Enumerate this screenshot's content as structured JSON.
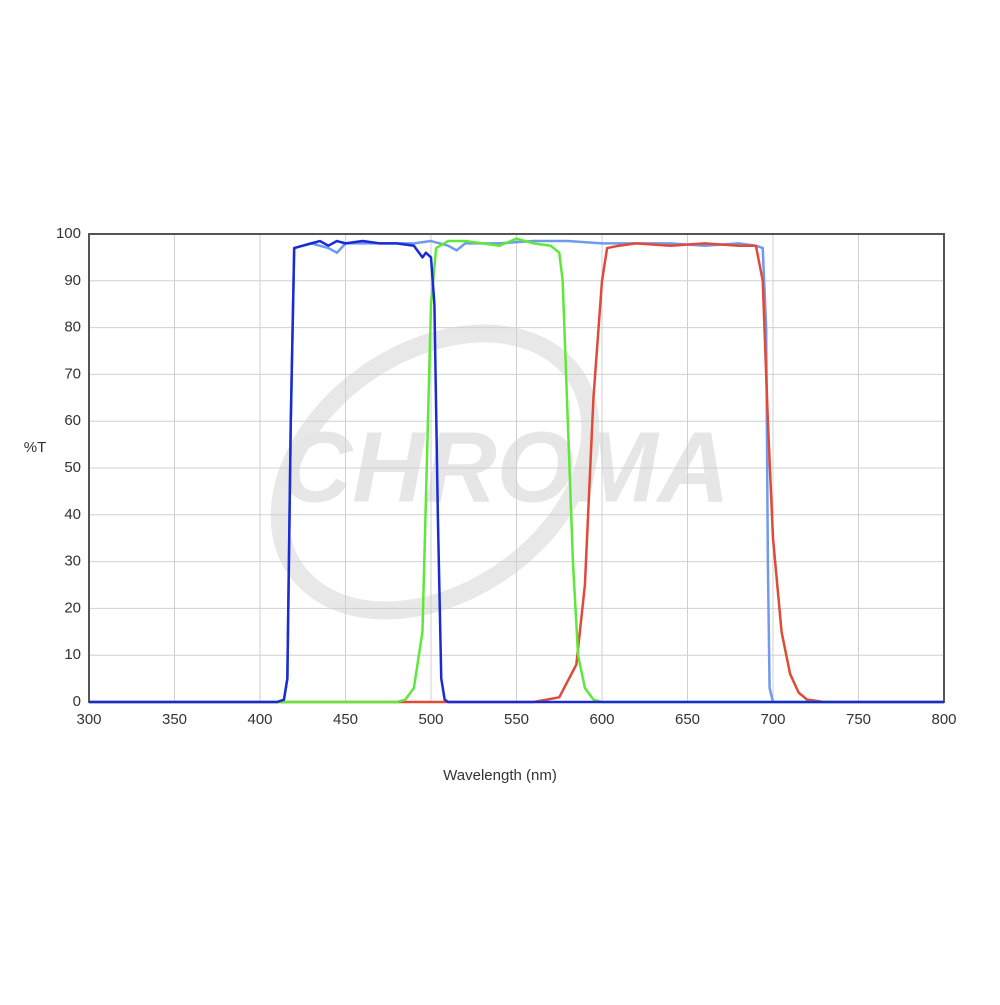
{
  "chart_data": {
    "type": "line",
    "watermark": "CHROMA",
    "xlabel": "Wavelength (nm)",
    "ylabel": "%T",
    "xlim": [
      300,
      800
    ],
    "ylim": [
      0,
      100
    ],
    "xticks": [
      300,
      350,
      400,
      450,
      500,
      550,
      600,
      650,
      700,
      750,
      800
    ],
    "yticks": [
      0,
      10,
      20,
      30,
      40,
      50,
      60,
      70,
      80,
      90,
      100
    ],
    "grid": true,
    "series": [
      {
        "color": "#6f9bee",
        "x": [
          300,
          410,
          414,
          416,
          418,
          420,
          430,
          440,
          445,
          450,
          470,
          490,
          500,
          510,
          515,
          520,
          540,
          560,
          580,
          600,
          620,
          640,
          660,
          680,
          690,
          694,
          696,
          697,
          698,
          700,
          800
        ],
        "values": [
          0,
          0,
          0.5,
          5,
          60,
          97,
          98,
          97,
          96,
          98,
          98,
          98,
          98.5,
          97.5,
          96.5,
          98,
          98,
          98.5,
          98.5,
          98,
          98,
          98,
          97.5,
          98,
          97.5,
          97,
          80,
          30,
          3,
          0,
          0
        ]
      },
      {
        "color": "#e04a38",
        "x": [
          300,
          560,
          575,
          585,
          590,
          595,
          600,
          603,
          610,
          620,
          640,
          660,
          680,
          690,
          694,
          697,
          700,
          705,
          710,
          715,
          720,
          730,
          800
        ],
        "values": [
          0,
          0,
          1,
          8,
          25,
          65,
          90,
          97,
          97.5,
          98,
          97.5,
          98,
          97.5,
          97.5,
          90,
          60,
          35,
          15,
          6,
          2,
          0.5,
          0,
          0
        ]
      },
      {
        "color": "#5ee83a",
        "x": [
          300,
          480,
          485,
          490,
          495,
          500,
          503,
          510,
          520,
          530,
          540,
          550,
          560,
          570,
          575,
          577,
          580,
          583,
          586,
          590,
          595,
          600,
          800
        ],
        "values": [
          0,
          0,
          0.5,
          3,
          15,
          85,
          97,
          98.5,
          98.5,
          98,
          97.5,
          99,
          98,
          97.5,
          96,
          90,
          60,
          30,
          10,
          3,
          0.5,
          0,
          0
        ]
      },
      {
        "color": "#1a2bd4",
        "x": [
          300,
          410,
          414,
          416,
          418,
          420,
          425,
          430,
          435,
          440,
          445,
          450,
          460,
          470,
          480,
          490,
          495,
          497,
          500,
          502,
          504,
          506,
          508,
          510,
          800
        ],
        "values": [
          0,
          0,
          0.5,
          5,
          60,
          97,
          97.5,
          98,
          98.5,
          97.5,
          98.5,
          98,
          98.5,
          98,
          98,
          97.5,
          95,
          96,
          95,
          85,
          40,
          5,
          0.5,
          0,
          0
        ]
      }
    ]
  }
}
